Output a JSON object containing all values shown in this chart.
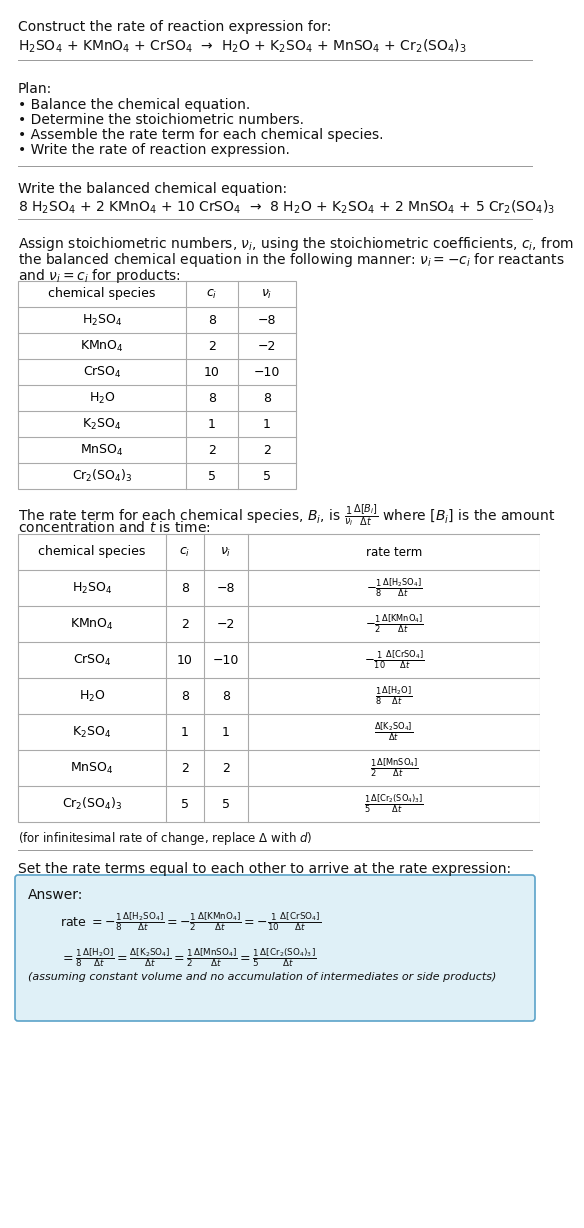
{
  "title_line1": "Construct the rate of reaction expression for:",
  "reaction_unbalanced": "H$_2$SO$_4$ + KMnO$_4$ + CrSO$_4$  →  H$_2$O + K$_2$SO$_4$ + MnSO$_4$ + Cr$_2$(SO$_4$)$_3$",
  "plan_header": "Plan:",
  "plan_items": [
    "• Balance the chemical equation.",
    "• Determine the stoichiometric numbers.",
    "• Assemble the rate term for each chemical species.",
    "• Write the rate of reaction expression."
  ],
  "balanced_header": "Write the balanced chemical equation:",
  "reaction_balanced": "8 H$_2$SO$_4$ + 2 KMnO$_4$ + 10 CrSO$_4$  →  8 H$_2$O + K$_2$SO$_4$ + 2 MnSO$_4$ + 5 Cr$_2$(SO$_4$)$_3$",
  "stoich_text1": "Assign stoichiometric numbers, $\\nu_i$, using the stoichiometric coefficients, $c_i$, from",
  "stoich_text2": "the balanced chemical equation in the following manner: $\\nu_i = -c_i$ for reactants",
  "stoich_text3": "and $\\nu_i = c_i$ for products:",
  "table1_headers": [
    "chemical species",
    "$c_i$",
    "$\\nu_i$"
  ],
  "table1_data": [
    [
      "H$_2$SO$_4$",
      "8",
      "−8"
    ],
    [
      "KMnO$_4$",
      "2",
      "−2"
    ],
    [
      "CrSO$_4$",
      "10",
      "−10"
    ],
    [
      "H$_2$O",
      "8",
      "8"
    ],
    [
      "K$_2$SO$_4$",
      "1",
      "1"
    ],
    [
      "MnSO$_4$",
      "2",
      "2"
    ],
    [
      "Cr$_2$(SO$_4$)$_3$",
      "5",
      "5"
    ]
  ],
  "rate_text1": "The rate term for each chemical species, $B_i$, is $\\frac{1}{\\nu_i}\\frac{\\Delta[B_i]}{\\Delta t}$ where $[B_i]$ is the amount",
  "rate_text2": "concentration and $t$ is time:",
  "table2_headers": [
    "chemical species",
    "$c_i$",
    "$\\nu_i$",
    "rate term"
  ],
  "table2_data": [
    [
      "H$_2$SO$_4$",
      "8",
      "−8",
      "$-\\frac{1}{8}\\frac{\\Delta[\\mathrm{H_2SO_4}]}{\\Delta t}$"
    ],
    [
      "KMnO$_4$",
      "2",
      "−2",
      "$-\\frac{1}{2}\\frac{\\Delta[\\mathrm{KMnO_4}]}{\\Delta t}$"
    ],
    [
      "CrSO$_4$",
      "10",
      "−10",
      "$-\\frac{1}{10}\\frac{\\Delta[\\mathrm{CrSO_4}]}{\\Delta t}$"
    ],
    [
      "H$_2$O",
      "8",
      "8",
      "$\\frac{1}{8}\\frac{\\Delta[\\mathrm{H_2O}]}{\\Delta t}$"
    ],
    [
      "K$_2$SO$_4$",
      "1",
      "1",
      "$\\frac{\\Delta[\\mathrm{K_2SO_4}]}{\\Delta t}$"
    ],
    [
      "MnSO$_4$",
      "2",
      "2",
      "$\\frac{1}{2}\\frac{\\Delta[\\mathrm{MnSO_4}]}{\\Delta t}$"
    ],
    [
      "Cr$_2$(SO$_4$)$_3$",
      "5",
      "5",
      "$\\frac{1}{5}\\frac{\\Delta[\\mathrm{Cr_2(SO_4)_3}]}{\\Delta t}$"
    ]
  ],
  "infinitesimal_note": "(for infinitesimal rate of change, replace Δ with $d$)",
  "set_rate_text": "Set the rate terms equal to each other to arrive at the rate expression:",
  "answer_box_color": "#dff0f7",
  "answer_box_border": "#5ba3c9",
  "answer_label": "Answer:",
  "rate_line1": "rate $= -\\frac{1}{8}\\frac{\\Delta[\\mathrm{H_2SO_4}]}{\\Delta t} = -\\frac{1}{2}\\frac{\\Delta[\\mathrm{KMnO_4}]}{\\Delta t} = -\\frac{1}{10}\\frac{\\Delta[\\mathrm{CrSO_4}]}{\\Delta t}$",
  "rate_line2": "$= \\frac{1}{8}\\frac{\\Delta[\\mathrm{H_2O}]}{\\Delta t} = \\frac{\\Delta[\\mathrm{K_2SO_4}]}{\\Delta t} = \\frac{1}{2}\\frac{\\Delta[\\mathrm{MnSO_4}]}{\\Delta t} = \\frac{1}{5}\\frac{\\Delta[\\mathrm{Cr_2(SO_4)_3}]}{\\Delta t}$",
  "assumption_note": "(assuming constant volume and no accumulation of intermediates or side products)",
  "bg_color": "#ffffff"
}
